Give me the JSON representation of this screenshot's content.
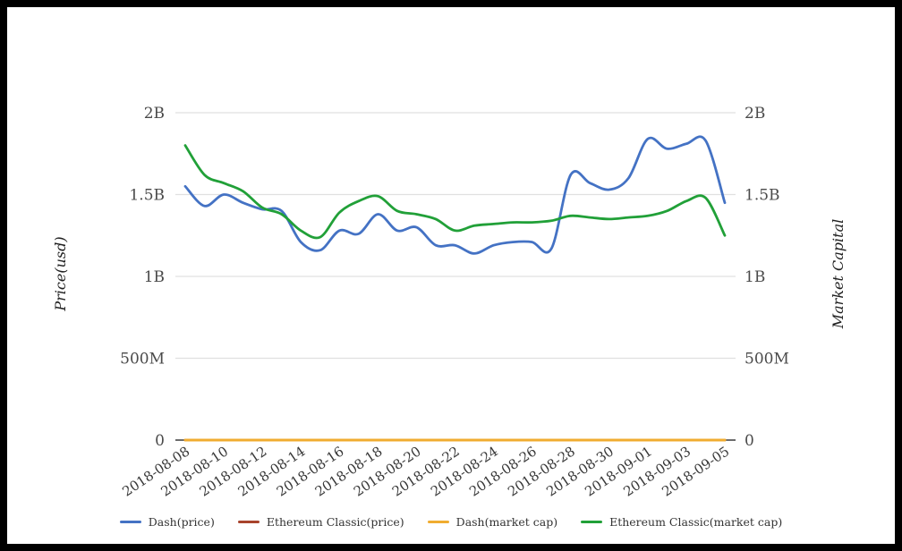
{
  "window": {
    "background_color": "#ffffff",
    "frame_color": "#000000"
  },
  "chart_data": {
    "type": "line",
    "title": "",
    "unit": "USD (axis shown in M/B)",
    "grid": true,
    "gridline_color": "#e0e0e0",
    "zero_line_color": "#3c3c3c",
    "tick_label_color": "#4a4a4a",
    "date_label_color": "#383838",
    "axis_title_color": "#1f1f1f",
    "legend_position": "bottom",
    "x_label_rotation_deg": -34,
    "dates": [
      "2018-08-08",
      "2018-08-09",
      "2018-08-10",
      "2018-08-11",
      "2018-08-12",
      "2018-08-13",
      "2018-08-14",
      "2018-08-15",
      "2018-08-16",
      "2018-08-17",
      "2018-08-18",
      "2018-08-19",
      "2018-08-20",
      "2018-08-21",
      "2018-08-22",
      "2018-08-23",
      "2018-08-24",
      "2018-08-25",
      "2018-08-26",
      "2018-08-27",
      "2018-08-28",
      "2018-08-29",
      "2018-08-30",
      "2018-08-31",
      "2018-09-01",
      "2018-09-02",
      "2018-09-03",
      "2018-09-04",
      "2018-09-05"
    ],
    "x_tick_labels": [
      "2018-08-08",
      "2018-08-10",
      "2018-08-12",
      "2018-08-14",
      "2018-08-16",
      "2018-08-18",
      "2018-08-20",
      "2018-08-22",
      "2018-08-24",
      "2018-08-26",
      "2018-08-28",
      "2018-08-30",
      "2018-09-01",
      "2018-09-03",
      "2018-09-05"
    ],
    "axes": {
      "left": {
        "title": "Price(usd)",
        "tick_labels": [
          "0",
          "500M",
          "1B",
          "1.5B",
          "2B"
        ],
        "tick_values_billions": [
          0,
          0.5,
          1,
          1.5,
          2
        ]
      },
      "right": {
        "title": "Market Capital",
        "tick_labels": [
          "0",
          "500M",
          "1B",
          "1.5B",
          "2B"
        ],
        "tick_values_billions": [
          0,
          0.5,
          1,
          1.5,
          2
        ]
      }
    },
    "series": [
      {
        "name": "Dash(price)",
        "color": "#4472c4",
        "stroke_width": 2.8,
        "values_billions": [
          1.55,
          1.43,
          1.5,
          1.45,
          1.41,
          1.4,
          1.21,
          1.16,
          1.28,
          1.26,
          1.38,
          1.28,
          1.3,
          1.19,
          1.19,
          1.14,
          1.19,
          1.21,
          1.21,
          1.17,
          1.62,
          1.57,
          1.53,
          1.6,
          1.84,
          1.78,
          1.81,
          1.83,
          1.45
        ]
      },
      {
        "name": "Ethereum Classic(price)",
        "color": "#a8432c",
        "stroke_width": 2.8,
        "values_billions": [
          0,
          0,
          0,
          0,
          0,
          0,
          0,
          0,
          0,
          0,
          0,
          0,
          0,
          0,
          0,
          0,
          0,
          0,
          0,
          0,
          0,
          0,
          0,
          0,
          0,
          0,
          0,
          0,
          0
        ]
      },
      {
        "name": "Dash(market cap)",
        "color": "#f0ac30",
        "stroke_width": 3,
        "values_billions": [
          0,
          0,
          0,
          0,
          0,
          0,
          0,
          0,
          0,
          0,
          0,
          0,
          0,
          0,
          0,
          0,
          0,
          0,
          0,
          0,
          0,
          0,
          0,
          0,
          0,
          0,
          0,
          0,
          0
        ]
      },
      {
        "name": "Ethereum Classic(market cap)",
        "color": "#21a038",
        "stroke_width": 2.8,
        "values_billions": [
          1.8,
          1.62,
          1.57,
          1.52,
          1.42,
          1.38,
          1.28,
          1.24,
          1.39,
          1.46,
          1.49,
          1.4,
          1.38,
          1.35,
          1.28,
          1.31,
          1.32,
          1.33,
          1.33,
          1.34,
          1.37,
          1.36,
          1.35,
          1.36,
          1.37,
          1.4,
          1.46,
          1.48,
          1.25
        ]
      }
    ]
  }
}
